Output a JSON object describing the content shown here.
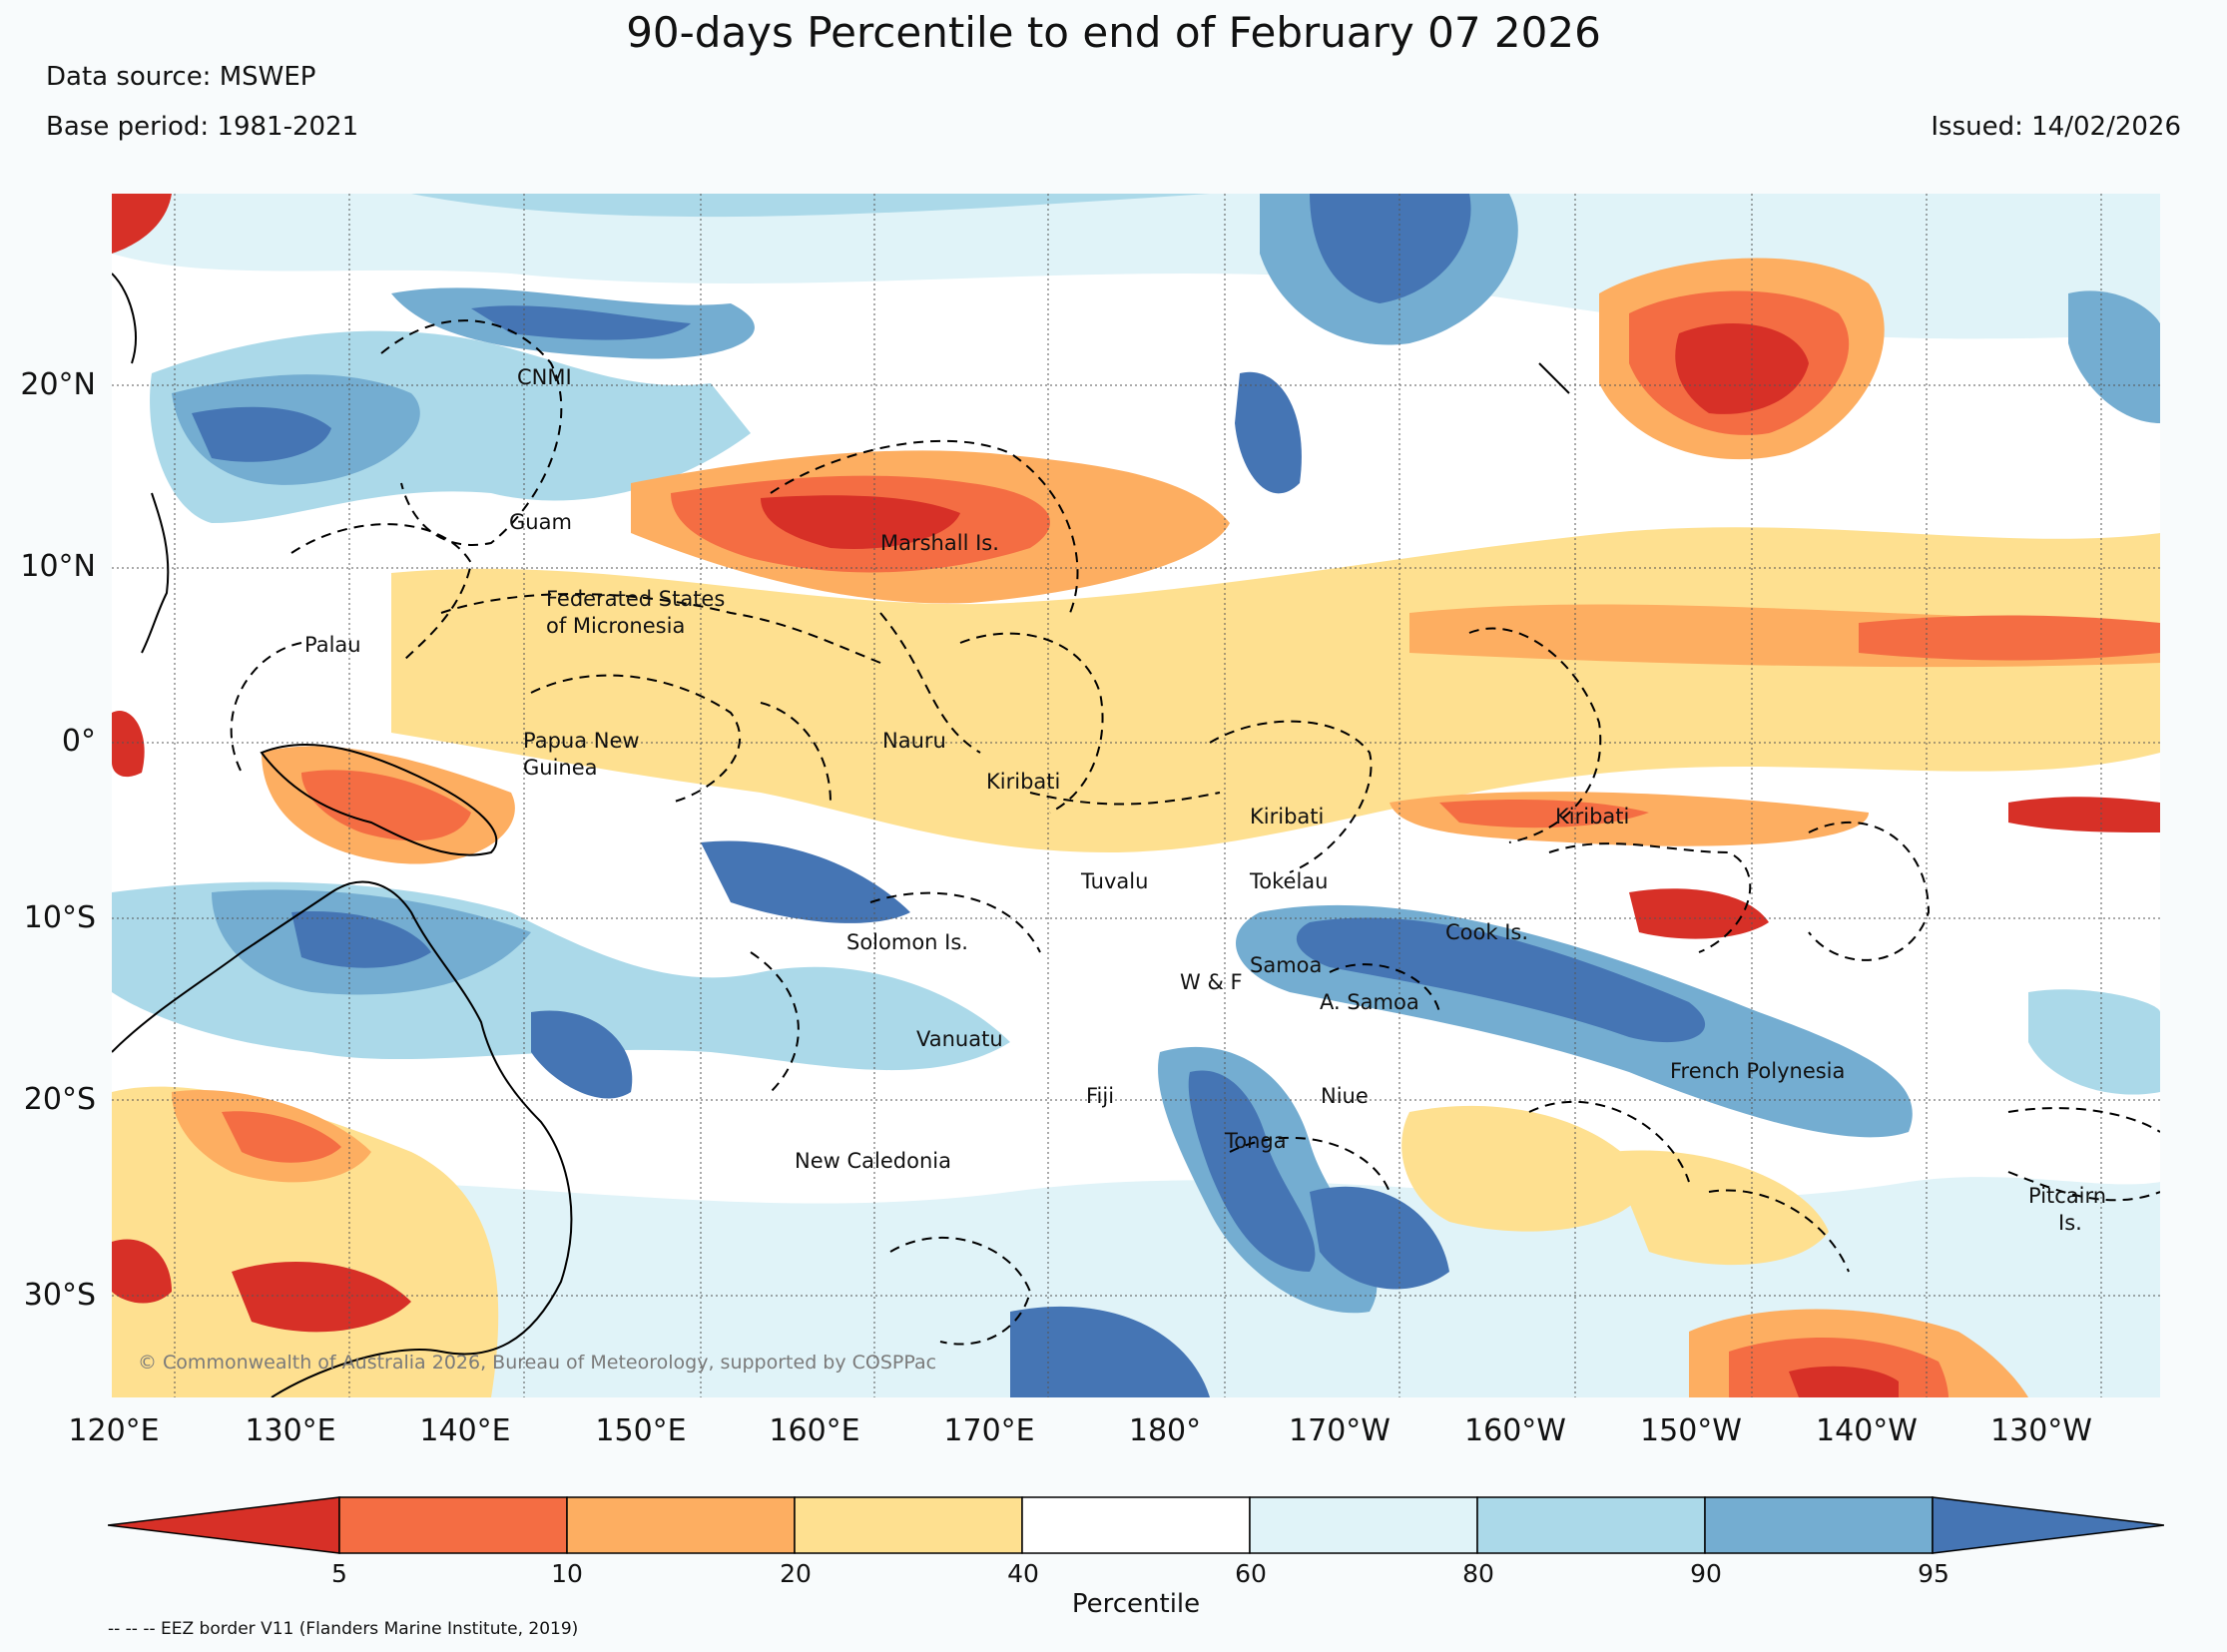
{
  "header": {
    "title": "90-days Percentile to end of February 07 2026",
    "data_source": "Data source: MSWEP",
    "base_period": "Base period: 1981-2021",
    "issued": "Issued: 14/02/2026"
  },
  "map": {
    "lat_labels": [
      "20°N",
      "10°N",
      "0°",
      "10°S",
      "20°S",
      "30°S"
    ],
    "lon_labels": [
      "120°E",
      "130°E",
      "140°E",
      "150°E",
      "160°E",
      "170°E",
      "180°",
      "170°W",
      "160°W",
      "150°W",
      "140°W",
      "130°W"
    ],
    "regions": {
      "cnmi": "CNMI",
      "guam": "Guam",
      "marshall": "Marshall Is.",
      "fsm_1": "Federated States",
      "fsm_2": "of Micronesia",
      "palau": "Palau",
      "png_1": "Papua New",
      "png_2": "Guinea",
      "nauru": "Nauru",
      "kiribati_w": "Kiribati",
      "kiribati_c": "Kiribati",
      "kiribati_e": "Kiribati",
      "tuvalu": "Tuvalu",
      "tokelau": "Tokelau",
      "solomon": "Solomon Is.",
      "cook": "Cook Is.",
      "samoa": "Samoa",
      "wf": "W & F",
      "asamoa": "A. Samoa",
      "vanuatu": "Vanuatu",
      "fiji": "Fiji",
      "niue": "Niue",
      "tonga": "Tonga",
      "french_poly": "French Polynesia",
      "new_caledonia": "New Caledonia",
      "pitcairn_1": "Pitcairn",
      "pitcairn_2": "Is."
    },
    "copyright": "© Commonwealth of Australia 2026, Bureau of Meteorology, supported by COSPPac"
  },
  "colorbar": {
    "label": "Percentile",
    "ticks": [
      "5",
      "10",
      "20",
      "40",
      "60",
      "80",
      "90",
      "95"
    ],
    "colors": [
      "#d73027",
      "#f46d43",
      "#fdae61",
      "#fee090",
      "#ffffff",
      "#e0f3f8",
      "#abd9e9",
      "#74add1",
      "#4575b4"
    ]
  },
  "footer": {
    "eez_note": "-- -- -- EEZ border V11 (Flanders Marine Institute, 2019)"
  }
}
